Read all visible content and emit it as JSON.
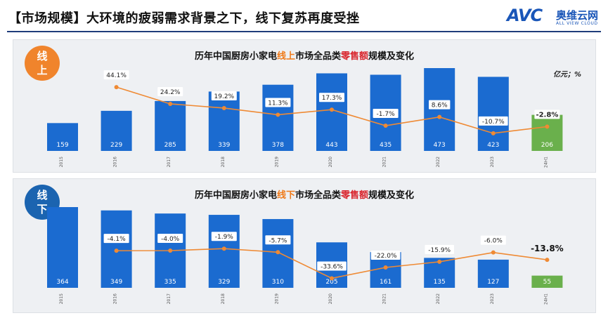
{
  "header": {
    "title": "【市场规模】大环境的疲弱需求背景之下，线下复苏再度受挫",
    "logo_mark": "AVC",
    "logo_cn": "奥维云网",
    "logo_en": "ALL VIEW CLOUD"
  },
  "colors": {
    "bar": "#1b6bd0",
    "bar_highlight": "#6ab04c",
    "line": "#ef8a34",
    "badge_online": "#f0842c",
    "badge_offline": "#1b64b0"
  },
  "chart_data": [
    {
      "type": "bar",
      "badge": [
        "线",
        "上"
      ],
      "title_parts": [
        "历年中国厨房小家电",
        "线上",
        "市场全品类",
        "零售额",
        "规模及变化"
      ],
      "unit": "亿元；%",
      "categories": [
        "2015",
        "2016",
        "2017",
        "2018",
        "2019",
        "2020",
        "2021",
        "2022",
        "2023",
        "24H1"
      ],
      "series": [
        {
          "values": [
            159,
            229,
            285,
            339,
            378,
            443,
            435,
            473,
            423,
            206
          ]
        },
        {
          "type": "line",
          "values": [
            null,
            44.1,
            24.2,
            19.2,
            11.3,
            17.3,
            -1.7,
            8.6,
            -10.7,
            -2.8
          ]
        }
      ],
      "labels": [
        "159",
        "229",
        "285",
        "339",
        "378",
        "443",
        "435",
        "473",
        "423",
        "206"
      ],
      "rate_labels": [
        "",
        "44.1%",
        "24.2%",
        "19.2%",
        "11.3%",
        "17.3%",
        "-1.7%",
        "8.6%",
        "-10.7%",
        "-2.8%"
      ],
      "highlight_index": 9
    },
    {
      "type": "bar",
      "badge": [
        "线",
        "下"
      ],
      "title_parts": [
        "历年中国厨房小家电",
        "线下",
        "市场全品类",
        "零售额",
        "规模及变化"
      ],
      "unit": "",
      "categories": [
        "2015",
        "2016",
        "2017",
        "2018",
        "2019",
        "2020",
        "2021",
        "2022",
        "2023",
        "24H1"
      ],
      "series": [
        {
          "values": [
            364,
            349,
            335,
            329,
            310,
            205,
            161,
            135,
            127,
            55
          ]
        },
        {
          "type": "line",
          "values": [
            null,
            -4.1,
            -4.0,
            -1.9,
            -5.7,
            -33.6,
            -22.0,
            -15.9,
            -6.0,
            -13.8
          ]
        }
      ],
      "labels": [
        "364",
        "349",
        "335",
        "329",
        "310",
        "205",
        "161",
        "135",
        "127",
        "55"
      ],
      "rate_labels": [
        "",
        "-4.1%",
        "-4.0%",
        "-1.9%",
        "-5.7%",
        "-33.6%",
        "-22.0%",
        "-15.9%",
        "-6.0%",
        "-13.8%"
      ],
      "highlight_index": 9
    }
  ]
}
